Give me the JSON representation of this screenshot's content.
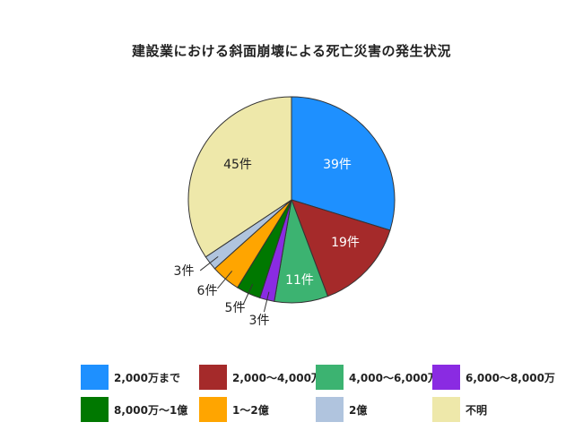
{
  "chart_data": {
    "type": "pie",
    "title": "建設業における斜面崩壊による死亡災害の発生状況",
    "unit": "件",
    "slices": [
      {
        "label": "2,000万まで",
        "value": 39,
        "color": "#1e90ff"
      },
      {
        "label": "2,000～4,000万",
        "value": 19,
        "color": "#a52a2a"
      },
      {
        "label": "4,000～6,000万",
        "value": 11,
        "color": "#3cb371"
      },
      {
        "label": "6,000～8,000万",
        "value": 3,
        "color": "#8a2be2"
      },
      {
        "label": "8,000万～1億",
        "value": 5,
        "color": "#007800"
      },
      {
        "label": "1～2億",
        "value": 6,
        "color": "#ffa500"
      },
      {
        "label": "2億",
        "value": 3,
        "color": "#b0c4de"
      },
      {
        "label": "不明",
        "value": 45,
        "color": "#eee8aa"
      }
    ],
    "data_labels": [
      "39件",
      "19件",
      "11件",
      "3件",
      "5件",
      "6件",
      "3件",
      "45件"
    ],
    "legend": {
      "position": "bottom",
      "columns": 4
    }
  }
}
